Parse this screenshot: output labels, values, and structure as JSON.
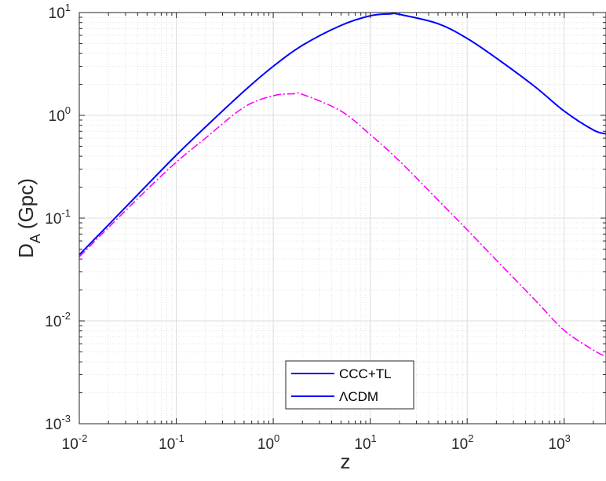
{
  "chart_data": {
    "type": "line",
    "xlabel": "z",
    "ylabel": {
      "main": "D",
      "sub": "A",
      "unit": "(Gpc)"
    },
    "x_scale": "log",
    "y_scale": "log",
    "xlim": [
      0.01,
      2700
    ],
    "ylim": [
      0.001,
      10
    ],
    "grid": true,
    "minor_grid": true,
    "legend_placement": "bottom-center",
    "x_ticks": [
      {
        "value": 0.01,
        "base": "10",
        "exp": "-2"
      },
      {
        "value": 0.1,
        "base": "10",
        "exp": "-1"
      },
      {
        "value": 1,
        "base": "10",
        "exp": "0"
      },
      {
        "value": 10,
        "base": "10",
        "exp": "1"
      },
      {
        "value": 100,
        "base": "10",
        "exp": "2"
      },
      {
        "value": 1000,
        "base": "10",
        "exp": "3"
      }
    ],
    "y_ticks": [
      {
        "value": 0.001,
        "base": "10",
        "exp": "-3"
      },
      {
        "value": 0.01,
        "base": "10",
        "exp": "-2"
      },
      {
        "value": 0.1,
        "base": "10",
        "exp": "-1"
      },
      {
        "value": 1,
        "base": "10",
        "exp": "0"
      },
      {
        "value": 10,
        "base": "10",
        "exp": "1"
      }
    ],
    "series": [
      {
        "name": "CCC+TL",
        "color": "#0000ff",
        "style": "solid",
        "x": [
          0.01,
          0.02,
          0.05,
          0.1,
          0.2,
          0.5,
          1,
          2,
          5,
          10,
          16,
          20,
          50,
          100,
          200,
          500,
          1000,
          2000,
          2700
        ],
        "y": [
          0.044,
          0.086,
          0.21,
          0.41,
          0.77,
          1.72,
          3.0,
          4.8,
          7.5,
          9.3,
          9.7,
          9.6,
          7.8,
          5.6,
          3.6,
          1.9,
          1.1,
          0.72,
          0.66
        ]
      },
      {
        "name": "ΛCDM",
        "color": "#ff00ff",
        "style": "dash-dot",
        "x": [
          0.01,
          0.02,
          0.05,
          0.1,
          0.2,
          0.5,
          1,
          1.6,
          2,
          5,
          10,
          20,
          50,
          100,
          200,
          500,
          1000,
          2000,
          2700
        ],
        "y": [
          0.042,
          0.081,
          0.19,
          0.35,
          0.6,
          1.2,
          1.55,
          1.62,
          1.6,
          1.1,
          0.65,
          0.36,
          0.15,
          0.077,
          0.039,
          0.016,
          0.0081,
          0.0052,
          0.0045
        ]
      }
    ],
    "legend": [
      {
        "label": "CCC+TL",
        "color": "#0000ff"
      },
      {
        "label": "ΛCDM",
        "color": "#0000ff"
      }
    ]
  }
}
